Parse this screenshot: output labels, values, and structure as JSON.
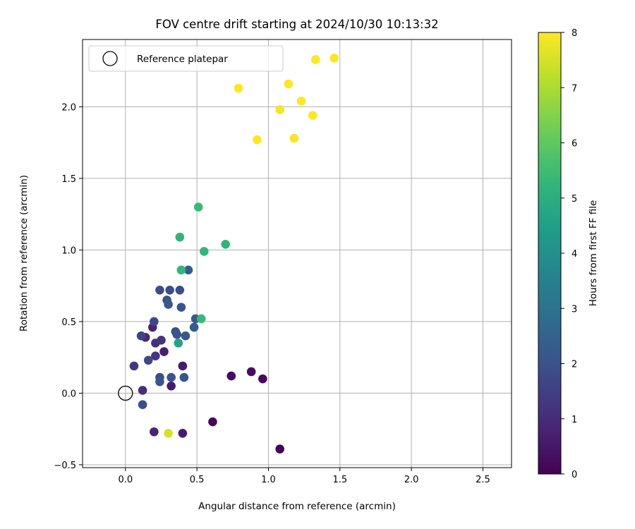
{
  "chart_data": {
    "type": "scatter",
    "title": "FOV centre drift starting at 2024/10/30 10:13:32",
    "xlabel": "Angular distance from reference (arcmin)",
    "ylabel": "Rotation from reference (arcmin)",
    "xlim": [
      -0.3,
      2.7
    ],
    "ylim": [
      -0.52,
      2.47
    ],
    "xticks": [
      "0.0",
      "0.5",
      "1.0",
      "1.5",
      "2.0",
      "2.5"
    ],
    "xtick_values": [
      0,
      0.5,
      1.0,
      1.5,
      2.0,
      2.5
    ],
    "yticks": [
      "−0.5",
      "0.0",
      "0.5",
      "1.0",
      "1.5",
      "2.0"
    ],
    "ytick_values": [
      -0.5,
      0,
      0.5,
      1.0,
      1.5,
      2.0
    ],
    "grid": true,
    "legend": {
      "position": "upper-left",
      "label": "Reference platepar"
    },
    "reference_point": {
      "x": 0.0,
      "y": 0.0
    },
    "colorbar": {
      "label": "Hours from first FF file",
      "colormap": "viridis",
      "range": [
        0,
        8
      ],
      "ticks": [
        "0",
        "1",
        "2",
        "3",
        "4",
        "5",
        "6",
        "7",
        "8"
      ],
      "tick_values": [
        0,
        1,
        2,
        3,
        4,
        5,
        6,
        7,
        8
      ]
    },
    "points": [
      {
        "x": 1.08,
        "y": -0.39,
        "c": 0.1
      },
      {
        "x": 0.61,
        "y": -0.2,
        "c": 0.2
      },
      {
        "x": 0.74,
        "y": 0.12,
        "c": 0.3
      },
      {
        "x": 0.88,
        "y": 0.15,
        "c": 0.3
      },
      {
        "x": 0.96,
        "y": 0.1,
        "c": 0.2
      },
      {
        "x": 0.4,
        "y": -0.28,
        "c": 0.6
      },
      {
        "x": 0.2,
        "y": -0.27,
        "c": 0.8
      },
      {
        "x": 0.32,
        "y": 0.05,
        "c": 0.6
      },
      {
        "x": 0.4,
        "y": 0.19,
        "c": 0.6
      },
      {
        "x": 0.27,
        "y": 0.29,
        "c": 0.7
      },
      {
        "x": 0.19,
        "y": 0.46,
        "c": 0.8
      },
      {
        "x": 0.14,
        "y": 0.39,
        "c": 0.9
      },
      {
        "x": 0.21,
        "y": 0.35,
        "c": 1.1
      },
      {
        "x": 0.25,
        "y": 0.37,
        "c": 1.2
      },
      {
        "x": 0.21,
        "y": 0.26,
        "c": 1.2
      },
      {
        "x": 0.12,
        "y": 0.02,
        "c": 1.1
      },
      {
        "x": 0.06,
        "y": 0.19,
        "c": 1.3
      },
      {
        "x": 0.11,
        "y": 0.4,
        "c": 1.6
      },
      {
        "x": 0.16,
        "y": 0.23,
        "c": 1.7
      },
      {
        "x": 0.12,
        "y": -0.08,
        "c": 1.9
      },
      {
        "x": 0.2,
        "y": 0.5,
        "c": 1.7
      },
      {
        "x": 0.24,
        "y": 0.11,
        "c": 1.8
      },
      {
        "x": 0.24,
        "y": 0.08,
        "c": 2.1
      },
      {
        "x": 0.32,
        "y": 0.11,
        "c": 2.0
      },
      {
        "x": 0.24,
        "y": 0.72,
        "c": 1.8
      },
      {
        "x": 0.31,
        "y": 0.72,
        "c": 1.9
      },
      {
        "x": 0.29,
        "y": 0.65,
        "c": 2.0
      },
      {
        "x": 0.3,
        "y": 0.62,
        "c": 2.2
      },
      {
        "x": 0.38,
        "y": 0.72,
        "c": 1.9
      },
      {
        "x": 0.39,
        "y": 0.6,
        "c": 2.1
      },
      {
        "x": 0.35,
        "y": 0.43,
        "c": 2.0
      },
      {
        "x": 0.36,
        "y": 0.41,
        "c": 2.1
      },
      {
        "x": 0.42,
        "y": 0.4,
        "c": 2.2
      },
      {
        "x": 0.41,
        "y": 0.11,
        "c": 2.1
      },
      {
        "x": 0.44,
        "y": 0.86,
        "c": 2.3
      },
      {
        "x": 0.48,
        "y": 0.46,
        "c": 2.3
      },
      {
        "x": 0.49,
        "y": 0.52,
        "c": 2.3
      },
      {
        "x": 0.37,
        "y": 0.35,
        "c": 4.6
      },
      {
        "x": 0.53,
        "y": 0.52,
        "c": 5.4
      },
      {
        "x": 0.39,
        "y": 0.86,
        "c": 5.3
      },
      {
        "x": 0.38,
        "y": 1.09,
        "c": 5.2
      },
      {
        "x": 0.55,
        "y": 0.99,
        "c": 5.3
      },
      {
        "x": 0.7,
        "y": 1.04,
        "c": 5.2
      },
      {
        "x": 0.51,
        "y": 1.3,
        "c": 5.4
      },
      {
        "x": 0.3,
        "y": -0.28,
        "c": 7.5
      },
      {
        "x": 0.79,
        "y": 2.13,
        "c": 8.0
      },
      {
        "x": 0.92,
        "y": 1.77,
        "c": 8.0
      },
      {
        "x": 1.08,
        "y": 1.98,
        "c": 7.9
      },
      {
        "x": 1.14,
        "y": 2.16,
        "c": 8.0
      },
      {
        "x": 1.18,
        "y": 1.78,
        "c": 7.9
      },
      {
        "x": 1.23,
        "y": 2.04,
        "c": 8.0
      },
      {
        "x": 1.31,
        "y": 1.94,
        "c": 8.0
      },
      {
        "x": 1.33,
        "y": 2.33,
        "c": 8.0
      },
      {
        "x": 1.46,
        "y": 2.34,
        "c": 8.0
      }
    ]
  }
}
